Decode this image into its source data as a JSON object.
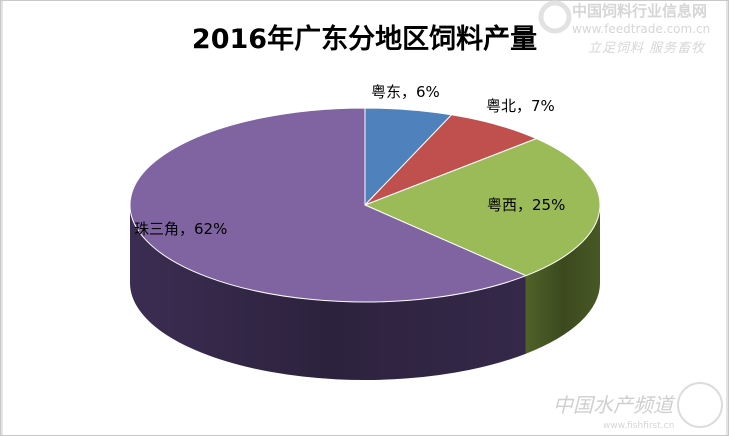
{
  "chart_data": {
    "type": "pie",
    "style": "3d",
    "title": "2016年广东分地区饲料产量",
    "categories": [
      "粤东",
      "粤北",
      "粤西",
      "珠三角"
    ],
    "values": [
      6,
      7,
      25,
      62
    ],
    "unit": "%",
    "labels": [
      "粤东，6%",
      "粤北，7%",
      "粤西，25%",
      "珠三角，62%"
    ],
    "colors": [
      "#4F81BD",
      "#C0504D",
      "#9BBB59",
      "#8064A2"
    ],
    "side_colors": [
      "#385d8a",
      "#8c3836",
      "#4f6228",
      "#3b2d52"
    ],
    "start_angle": "12 o'clock",
    "direction": "clockwise",
    "legend": "none"
  },
  "watermarks": {
    "top_right_cn": "中国饲料行业信息网",
    "top_right_url": "www.feedtrade.com.cn",
    "top_right_slogan": "立足饲料 服务畜牧",
    "bottom_right_cn": "中国水产频道",
    "bottom_right_url": "www.fishfirst.cn"
  }
}
